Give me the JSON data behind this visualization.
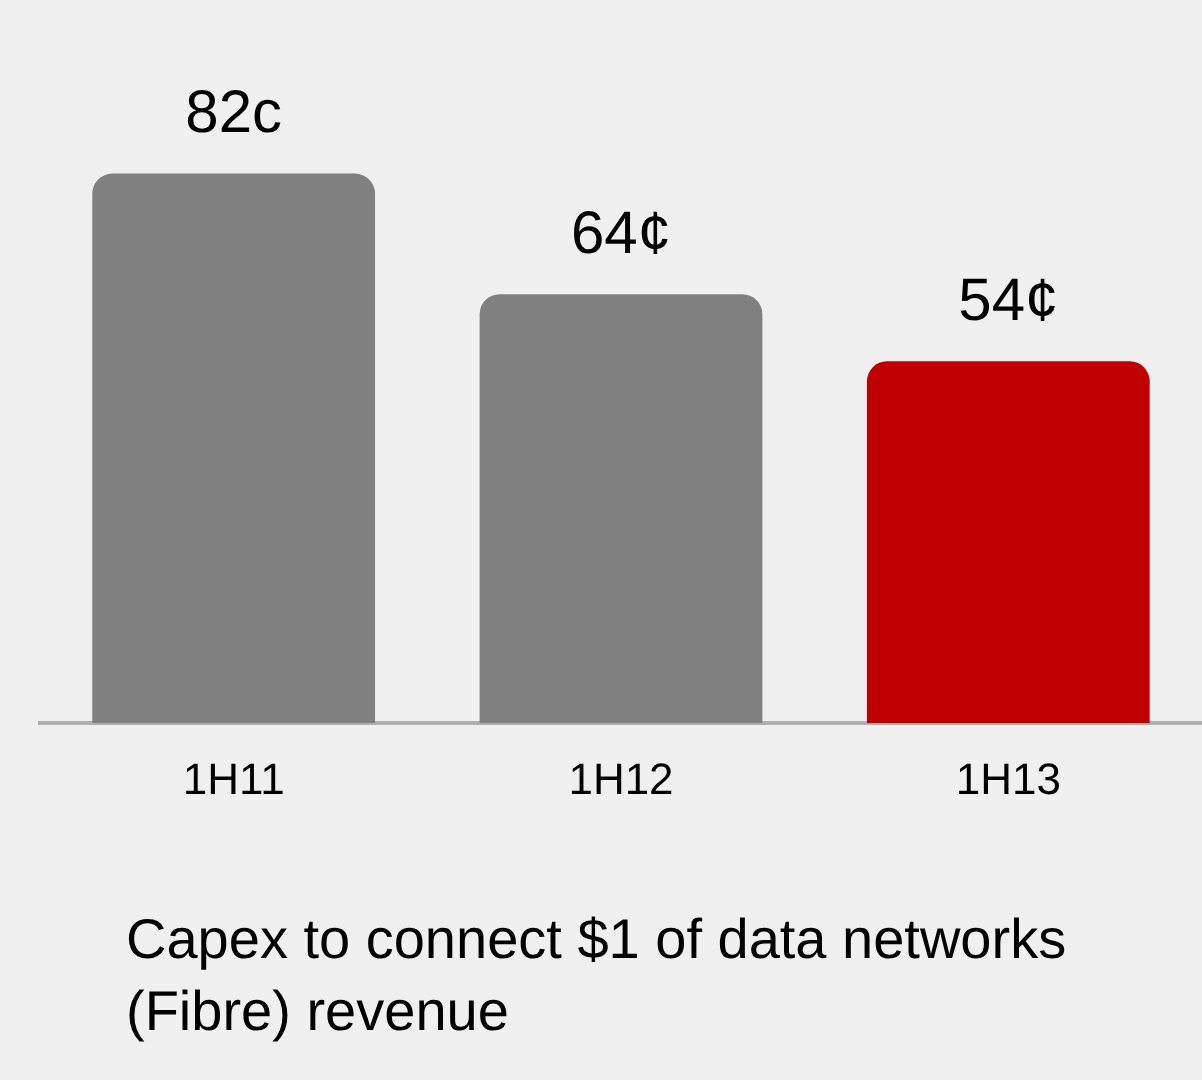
{
  "chart_data": {
    "type": "bar",
    "categories": [
      "1H11",
      "1H12",
      "1H13"
    ],
    "values": [
      82,
      64,
      54
    ],
    "value_labels": [
      "82c",
      "64¢",
      "54¢"
    ],
    "colors": [
      "#808080",
      "#808080",
      "#c00000"
    ],
    "grid": false,
    "legend": false,
    "tick_labels": "x",
    "annotations": [
      "Capex to connect $1 of data networks (Fibre) revenue"
    ]
  }
}
